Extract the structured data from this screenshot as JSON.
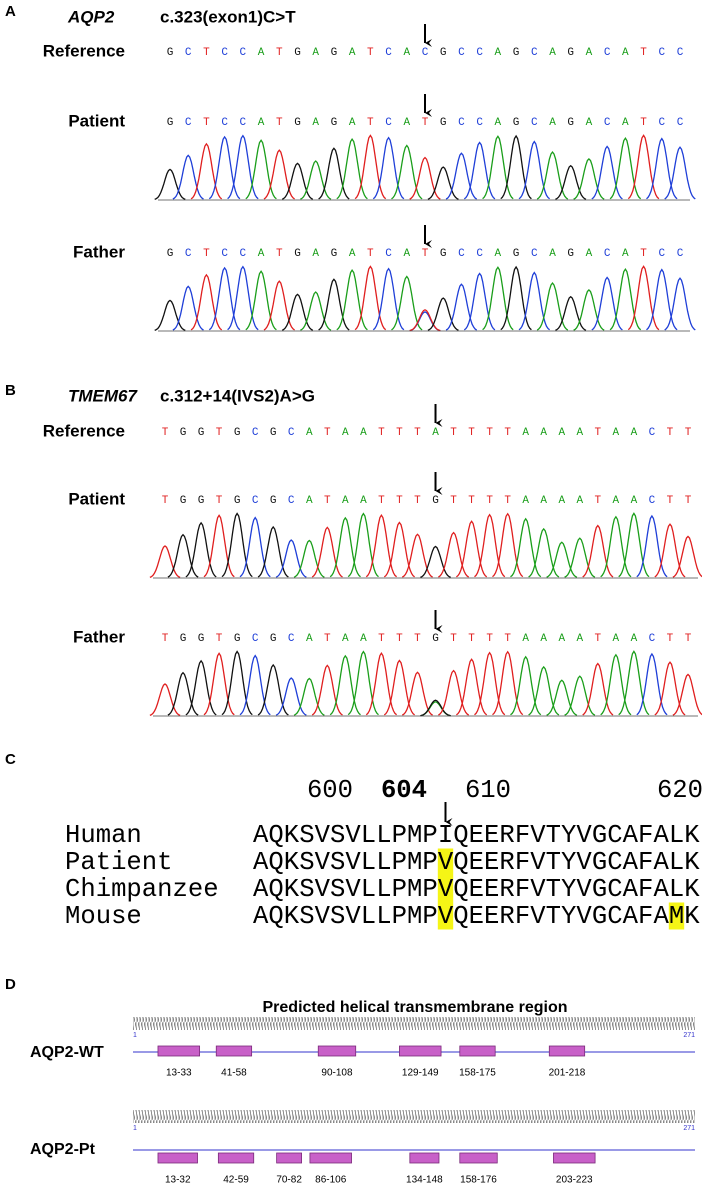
{
  "panels": [
    {
      "label": "A",
      "gene": "AQP2",
      "variant": "c.323(exon1)C>T",
      "tracks": [
        {
          "name": "Reference",
          "sequence": "GCTCCATGAGATCACGCCAGCAGACATCC"
        },
        {
          "name": "Patient",
          "sequence": "GCTCCATGAGATCATGCCAGCAGACATCC"
        },
        {
          "name": "Father",
          "sequence": "GCTCCATGAGATCATGCCAGCAGACATCC"
        }
      ]
    },
    {
      "label": "B",
      "gene": "TMEM67",
      "variant": "c.312+14(IVS2)A>G",
      "tracks": [
        {
          "name": "Reference",
          "sequence": "TGGTGCGCATAATTTATTTTAAAATAACTT"
        },
        {
          "name": "Patient",
          "sequence": "TGGTGCGCATAATTTGTTTTAAAATAACTT"
        },
        {
          "name": "Father",
          "sequence": "TGGTGCGCATAATTTGTTTTAAAATAACTT"
        }
      ]
    }
  ],
  "alignment": {
    "label": "C",
    "positions": [
      600,
      604,
      610,
      620
    ],
    "rows": [
      {
        "name": "Human",
        "sequence": "AQKSVSVLLPMPIQEERFVTYVGCAFALK"
      },
      {
        "name": "Patient",
        "sequence": "AQKSVSVLLPMPVQEERFVTYVGCAFALK"
      },
      {
        "name": "Chimpanzee",
        "sequence": "AQKSVSVLLPMPVQEERFVTYVGCAFALK"
      },
      {
        "name": "Mouse",
        "sequence": "AQKSVSVLLPMPVQEERFVTYVGCAFAMK"
      }
    ]
  },
  "helical": {
    "label": "D",
    "title": "Predicted helical transmembrane region",
    "ruler": {
      "start": 1,
      "end": 271
    },
    "proteins": [
      {
        "name": "AQP2-WT",
        "regions": [
          {
            "label": "13-33",
            "start": 13,
            "end": 33
          },
          {
            "label": "41-58",
            "start": 41,
            "end": 58
          },
          {
            "label": "90-108",
            "start": 90,
            "end": 108
          },
          {
            "label": "129-149",
            "start": 129,
            "end": 149
          },
          {
            "label": "158-175",
            "start": 158,
            "end": 175
          },
          {
            "label": "201-218",
            "start": 201,
            "end": 218
          }
        ]
      },
      {
        "name": "AQP2-Pt",
        "regions": [
          {
            "label": "13-32",
            "start": 13,
            "end": 32
          },
          {
            "label": "42-59",
            "start": 42,
            "end": 59
          },
          {
            "label": "70-82",
            "start": 70,
            "end": 82
          },
          {
            "label": "86-106",
            "start": 86,
            "end": 106
          },
          {
            "label": "134-148",
            "start": 134,
            "end": 148
          },
          {
            "label": "158-176",
            "start": 158,
            "end": 176
          },
          {
            "label": "203-223",
            "start": 203,
            "end": 223
          }
        ]
      }
    ]
  }
}
